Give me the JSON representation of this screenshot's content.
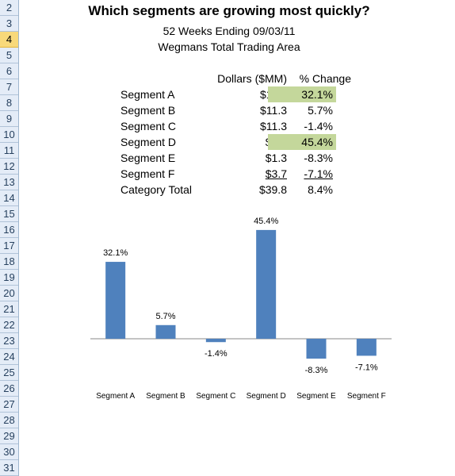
{
  "row_numbers": [
    "2",
    "3",
    "4",
    "5",
    "6",
    "7",
    "8",
    "9",
    "10",
    "11",
    "12",
    "13",
    "14",
    "15",
    "16",
    "17",
    "18",
    "19",
    "20",
    "21",
    "22",
    "23",
    "24",
    "25",
    "26",
    "27",
    "28",
    "29",
    "30",
    "31"
  ],
  "selected_row": "4",
  "title": "Which segments are growing most quickly?",
  "subtitle1": "52 Weeks Ending 09/03/11",
  "subtitle2": "Wegmans Total Trading Area",
  "table": {
    "header_dollars": "Dollars ($MM)",
    "header_change": "% Change",
    "rows": [
      {
        "label": "Segment A",
        "dollars": "$11.0",
        "change": "32.1%",
        "highlight": true
      },
      {
        "label": "Segment B",
        "dollars": "$11.3",
        "change": "5.7%",
        "highlight": false
      },
      {
        "label": "Segment C",
        "dollars": "$11.3",
        "change": "-1.4%",
        "highlight": false
      },
      {
        "label": "Segment D",
        "dollars": "$1.2",
        "change": "45.4%",
        "highlight": true
      },
      {
        "label": "Segment E",
        "dollars": "$1.3",
        "change": "-8.3%",
        "highlight": false
      },
      {
        "label": "Segment F",
        "dollars": "$3.7",
        "change": "-7.1%",
        "highlight": false,
        "underline": true
      },
      {
        "label": "Category Total",
        "dollars": "$39.8",
        "change": "8.4%",
        "highlight": false
      }
    ]
  },
  "colors": {
    "bar": "#4f81bd",
    "highlight": "#c4d79b",
    "row_header_bg": "#e4ecf7"
  },
  "chart_data": {
    "type": "bar",
    "categories": [
      "Segment A",
      "Segment B",
      "Segment C",
      "Segment D",
      "Segment E",
      "Segment F"
    ],
    "values": [
      32.1,
      5.7,
      -1.4,
      45.4,
      -8.3,
      -7.1
    ],
    "data_labels": [
      "32.1%",
      "5.7%",
      "-1.4%",
      "45.4%",
      "-8.3%",
      "-7.1%"
    ],
    "title": "",
    "xlabel": "",
    "ylabel": "",
    "ylim": [
      -10,
      50
    ],
    "grid": false,
    "legend": "none"
  }
}
